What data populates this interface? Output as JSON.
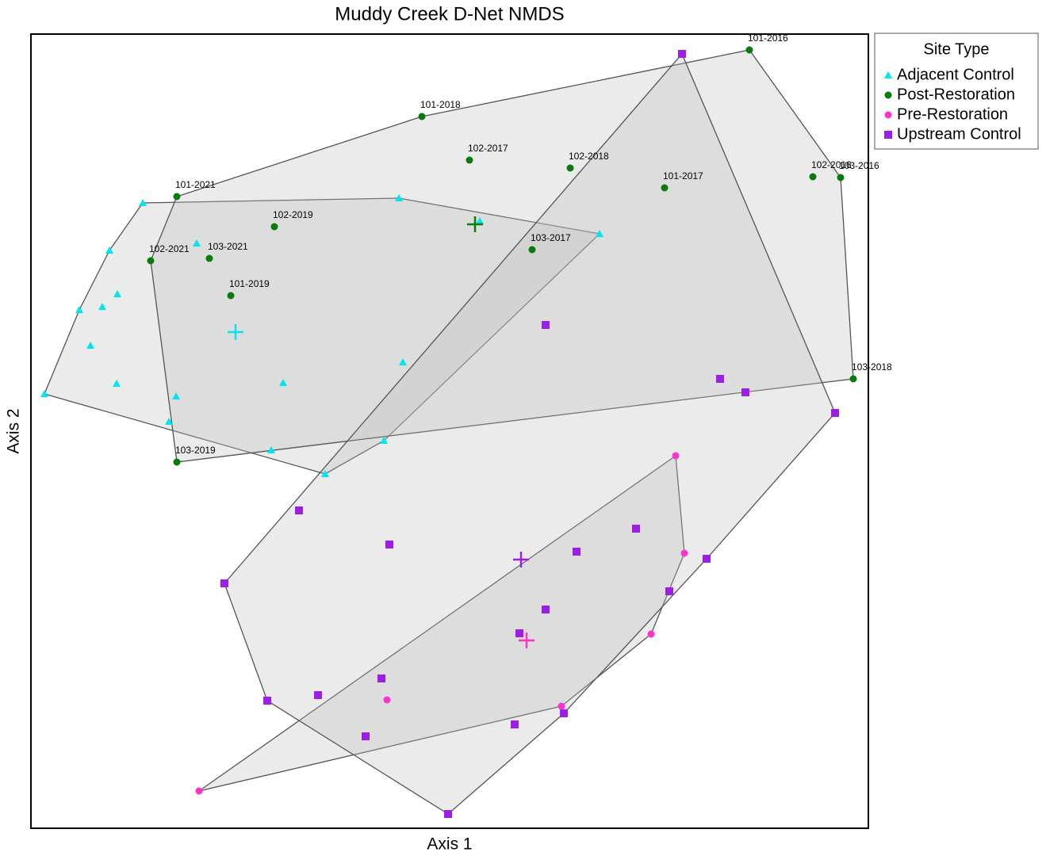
{
  "chart_data": {
    "type": "scatter",
    "title": "Muddy Creek D-Net NMDS",
    "x_label": "Axis 1",
    "y_label": "Axis 2",
    "legend_title": "Site Type",
    "legend_position": "outside-right",
    "xlim": [
      0,
      1056
    ],
    "ylim": [
      0,
      1002
    ],
    "series": [
      {
        "name": "Adjacent Control",
        "color": "#00e5ee",
        "marker": "triangle",
        "x": [
          141,
          464,
          566,
          717,
          99,
          209,
          109,
          90,
          61,
          75,
          108,
          17,
          183,
          318,
          469,
          174,
          445,
          303,
          371
        ],
        "y": [
          789,
          795,
          766,
          750,
          729,
          738,
          674,
          658,
          654,
          609,
          561,
          548,
          545,
          562,
          588,
          513,
          489,
          477,
          447
        ],
        "centroid": {
          "x": 258,
          "y": 626
        }
      },
      {
        "name": "Post-Restoration",
        "color": "#0a7a0a",
        "marker": "circle",
        "x": [
          906,
          493,
          553,
          680,
          799,
          986,
          1021,
          184,
          307,
          225,
          151,
          632,
          252,
          1037,
          184
        ],
        "y": [
          982,
          898,
          843,
          833,
          808,
          822,
          821,
          797,
          759,
          719,
          716,
          730,
          672,
          567,
          462
        ],
        "point_labels": [
          "101-2016",
          "101-2018",
          "102-2017",
          "102-2018",
          "101-2017",
          "102-2016",
          "103-2016",
          "101-2021",
          "102-2019",
          "103-2021",
          "102-2021",
          "103-2017",
          "101-2019",
          "103-2018",
          "103-2019"
        ],
        "centroid": {
          "x": 560,
          "y": 762
        }
      },
      {
        "name": "Pre-Restoration",
        "color": "#ff33cc",
        "marker": "circle",
        "x": [
          813,
          824,
          782,
          449,
          669,
          212
        ],
        "y": [
          470,
          347,
          245,
          162,
          154,
          47
        ],
        "centroid": {
          "x": 625,
          "y": 237
        }
      },
      {
        "name": "Upstream Control",
        "color": "#9b1fe8",
        "marker": "square",
        "x": [
          821,
          649,
          869,
          901,
          1014,
          338,
          452,
          763,
          688,
          852,
          244,
          805,
          649,
          616,
          442,
          362,
          298,
          672,
          610,
          422,
          526
        ],
        "y": [
          977,
          635,
          567,
          550,
          524,
          401,
          358,
          378,
          349,
          340,
          309,
          299,
          276,
          246,
          189,
          168,
          161,
          145,
          131,
          116,
          18
        ],
        "centroid": {
          "x": 618,
          "y": 339
        }
      }
    ]
  }
}
